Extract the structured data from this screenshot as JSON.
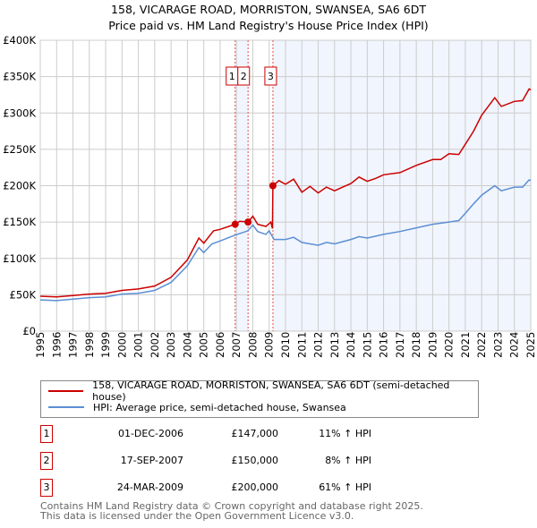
{
  "chart_data": {
    "type": "line",
    "title": "158, VICARAGE ROAD, MORRISTON, SWANSEA, SA6 6DT",
    "subtitle": "Price paid vs. HM Land Registry's House Price Index (HPI)",
    "xlim": [
      1995,
      2025
    ],
    "ylim": [
      0,
      400000
    ],
    "x_ticks": [
      "1995",
      "1996",
      "1997",
      "1998",
      "1999",
      "2000",
      "2001",
      "2002",
      "2003",
      "2004",
      "2005",
      "2006",
      "2007",
      "2008",
      "2009",
      "2010",
      "2011",
      "2012",
      "2013",
      "2014",
      "2015",
      "2016",
      "2017",
      "2018",
      "2019",
      "2020",
      "2021",
      "2022",
      "2023",
      "2024",
      "2025"
    ],
    "y_ticks": [
      {
        "v": 0,
        "label": "£0"
      },
      {
        "v": 50000,
        "label": "£50K"
      },
      {
        "v": 100000,
        "label": "£100K"
      },
      {
        "v": 150000,
        "label": "£150K"
      },
      {
        "v": 200000,
        "label": "£200K"
      },
      {
        "v": 250000,
        "label": "£250K"
      },
      {
        "v": 300000,
        "label": "£300K"
      },
      {
        "v": 350000,
        "label": "£350K"
      },
      {
        "v": 400000,
        "label": "£400K"
      }
    ],
    "grid": true,
    "series": [
      {
        "name": "158, VICARAGE ROAD, MORRISTON, SWANSEA, SA6 6DT (semi-detached house)",
        "color": "#cc0000",
        "x": [
          1995,
          1996,
          1997,
          1998,
          1999,
          2000,
          2001,
          2002,
          2003,
          2004,
          2004.7,
          2005,
          2005.6,
          2006,
          2006.92,
          2007.2,
          2007.71,
          2008,
          2008.3,
          2008.8,
          2009.1,
          2009.2,
          2009.23,
          2009.6,
          2010,
          2010.5,
          2011,
          2011.5,
          2012,
          2012.5,
          2013,
          2013.5,
          2014,
          2014.5,
          2015,
          2015.5,
          2016,
          2017,
          2018,
          2019,
          2019.5,
          2020,
          2020.6,
          2021,
          2021.5,
          2022,
          2022.8,
          2023.2,
          2024,
          2024.5,
          2024.9,
          2025
        ],
        "y": [
          48000,
          47000,
          49000,
          51000,
          52000,
          56000,
          58000,
          62000,
          74000,
          98000,
          128000,
          121000,
          138000,
          140000,
          147000,
          151000,
          150000,
          158000,
          147000,
          144000,
          150000,
          141000,
          200000,
          207000,
          202000,
          209000,
          191000,
          199000,
          190000,
          198000,
          193000,
          198000,
          203000,
          212000,
          206000,
          210000,
          215000,
          218000,
          228000,
          236000,
          236000,
          244000,
          243000,
          257000,
          275000,
          297000,
          321000,
          309000,
          316000,
          317000,
          333000,
          332000
        ]
      },
      {
        "name": "HPI: Average price, semi-detached house, Swansea",
        "color": "#5b8fd4",
        "x": [
          1995,
          1996,
          1997,
          1998,
          1999,
          2000,
          2001,
          2002,
          2003,
          2004,
          2004.7,
          2005,
          2005.5,
          2006,
          2006.9,
          2007.7,
          2008,
          2008.3,
          2008.8,
          2009,
          2009.3,
          2010,
          2010.5,
          2011,
          2012,
          2012.5,
          2013,
          2014,
          2014.5,
          2015,
          2016,
          2017,
          2018,
          2019,
          2020,
          2020.6,
          2021,
          2021.5,
          2022,
          2022.8,
          2023.2,
          2024,
          2024.5,
          2024.9,
          2025
        ],
        "y": [
          43000,
          42000,
          44000,
          46000,
          47000,
          51000,
          52000,
          56000,
          67000,
          90000,
          115000,
          108000,
          120000,
          124000,
          132000,
          138000,
          146000,
          137000,
          133000,
          138000,
          126000,
          126000,
          129000,
          122000,
          118000,
          122000,
          120000,
          126000,
          130000,
          128000,
          133000,
          137000,
          142000,
          147000,
          150000,
          152000,
          162000,
          175000,
          187000,
          200000,
          193000,
          198000,
          198000,
          208000,
          207000
        ]
      }
    ],
    "sales": [
      {
        "label": "1",
        "x": 2006.92,
        "y": 147000
      },
      {
        "label": "2",
        "x": 2007.71,
        "y": 150000
      },
      {
        "label": "3",
        "x": 2009.23,
        "y": 200000
      }
    ],
    "shaded": [
      [
        2006.92,
        2007.71
      ],
      [
        2009.23,
        2025
      ]
    ]
  },
  "legend": {
    "item1": "158, VICARAGE ROAD, MORRISTON, SWANSEA, SA6 6DT (semi-detached house)",
    "item2": "HPI: Average price, semi-detached house, Swansea"
  },
  "transactions": [
    {
      "num": "1",
      "date": "01-DEC-2006",
      "price": "£147,000",
      "hpi": "11% ↑ HPI"
    },
    {
      "num": "2",
      "date": "17-SEP-2007",
      "price": "£150,000",
      "hpi": "8% ↑ HPI"
    },
    {
      "num": "3",
      "date": "24-MAR-2009",
      "price": "£200,000",
      "hpi": "61% ↑ HPI"
    }
  ],
  "footer": {
    "line1": "Contains HM Land Registry data © Crown copyright and database right 2025.",
    "line2": "This data is licensed under the Open Government Licence v3.0."
  }
}
